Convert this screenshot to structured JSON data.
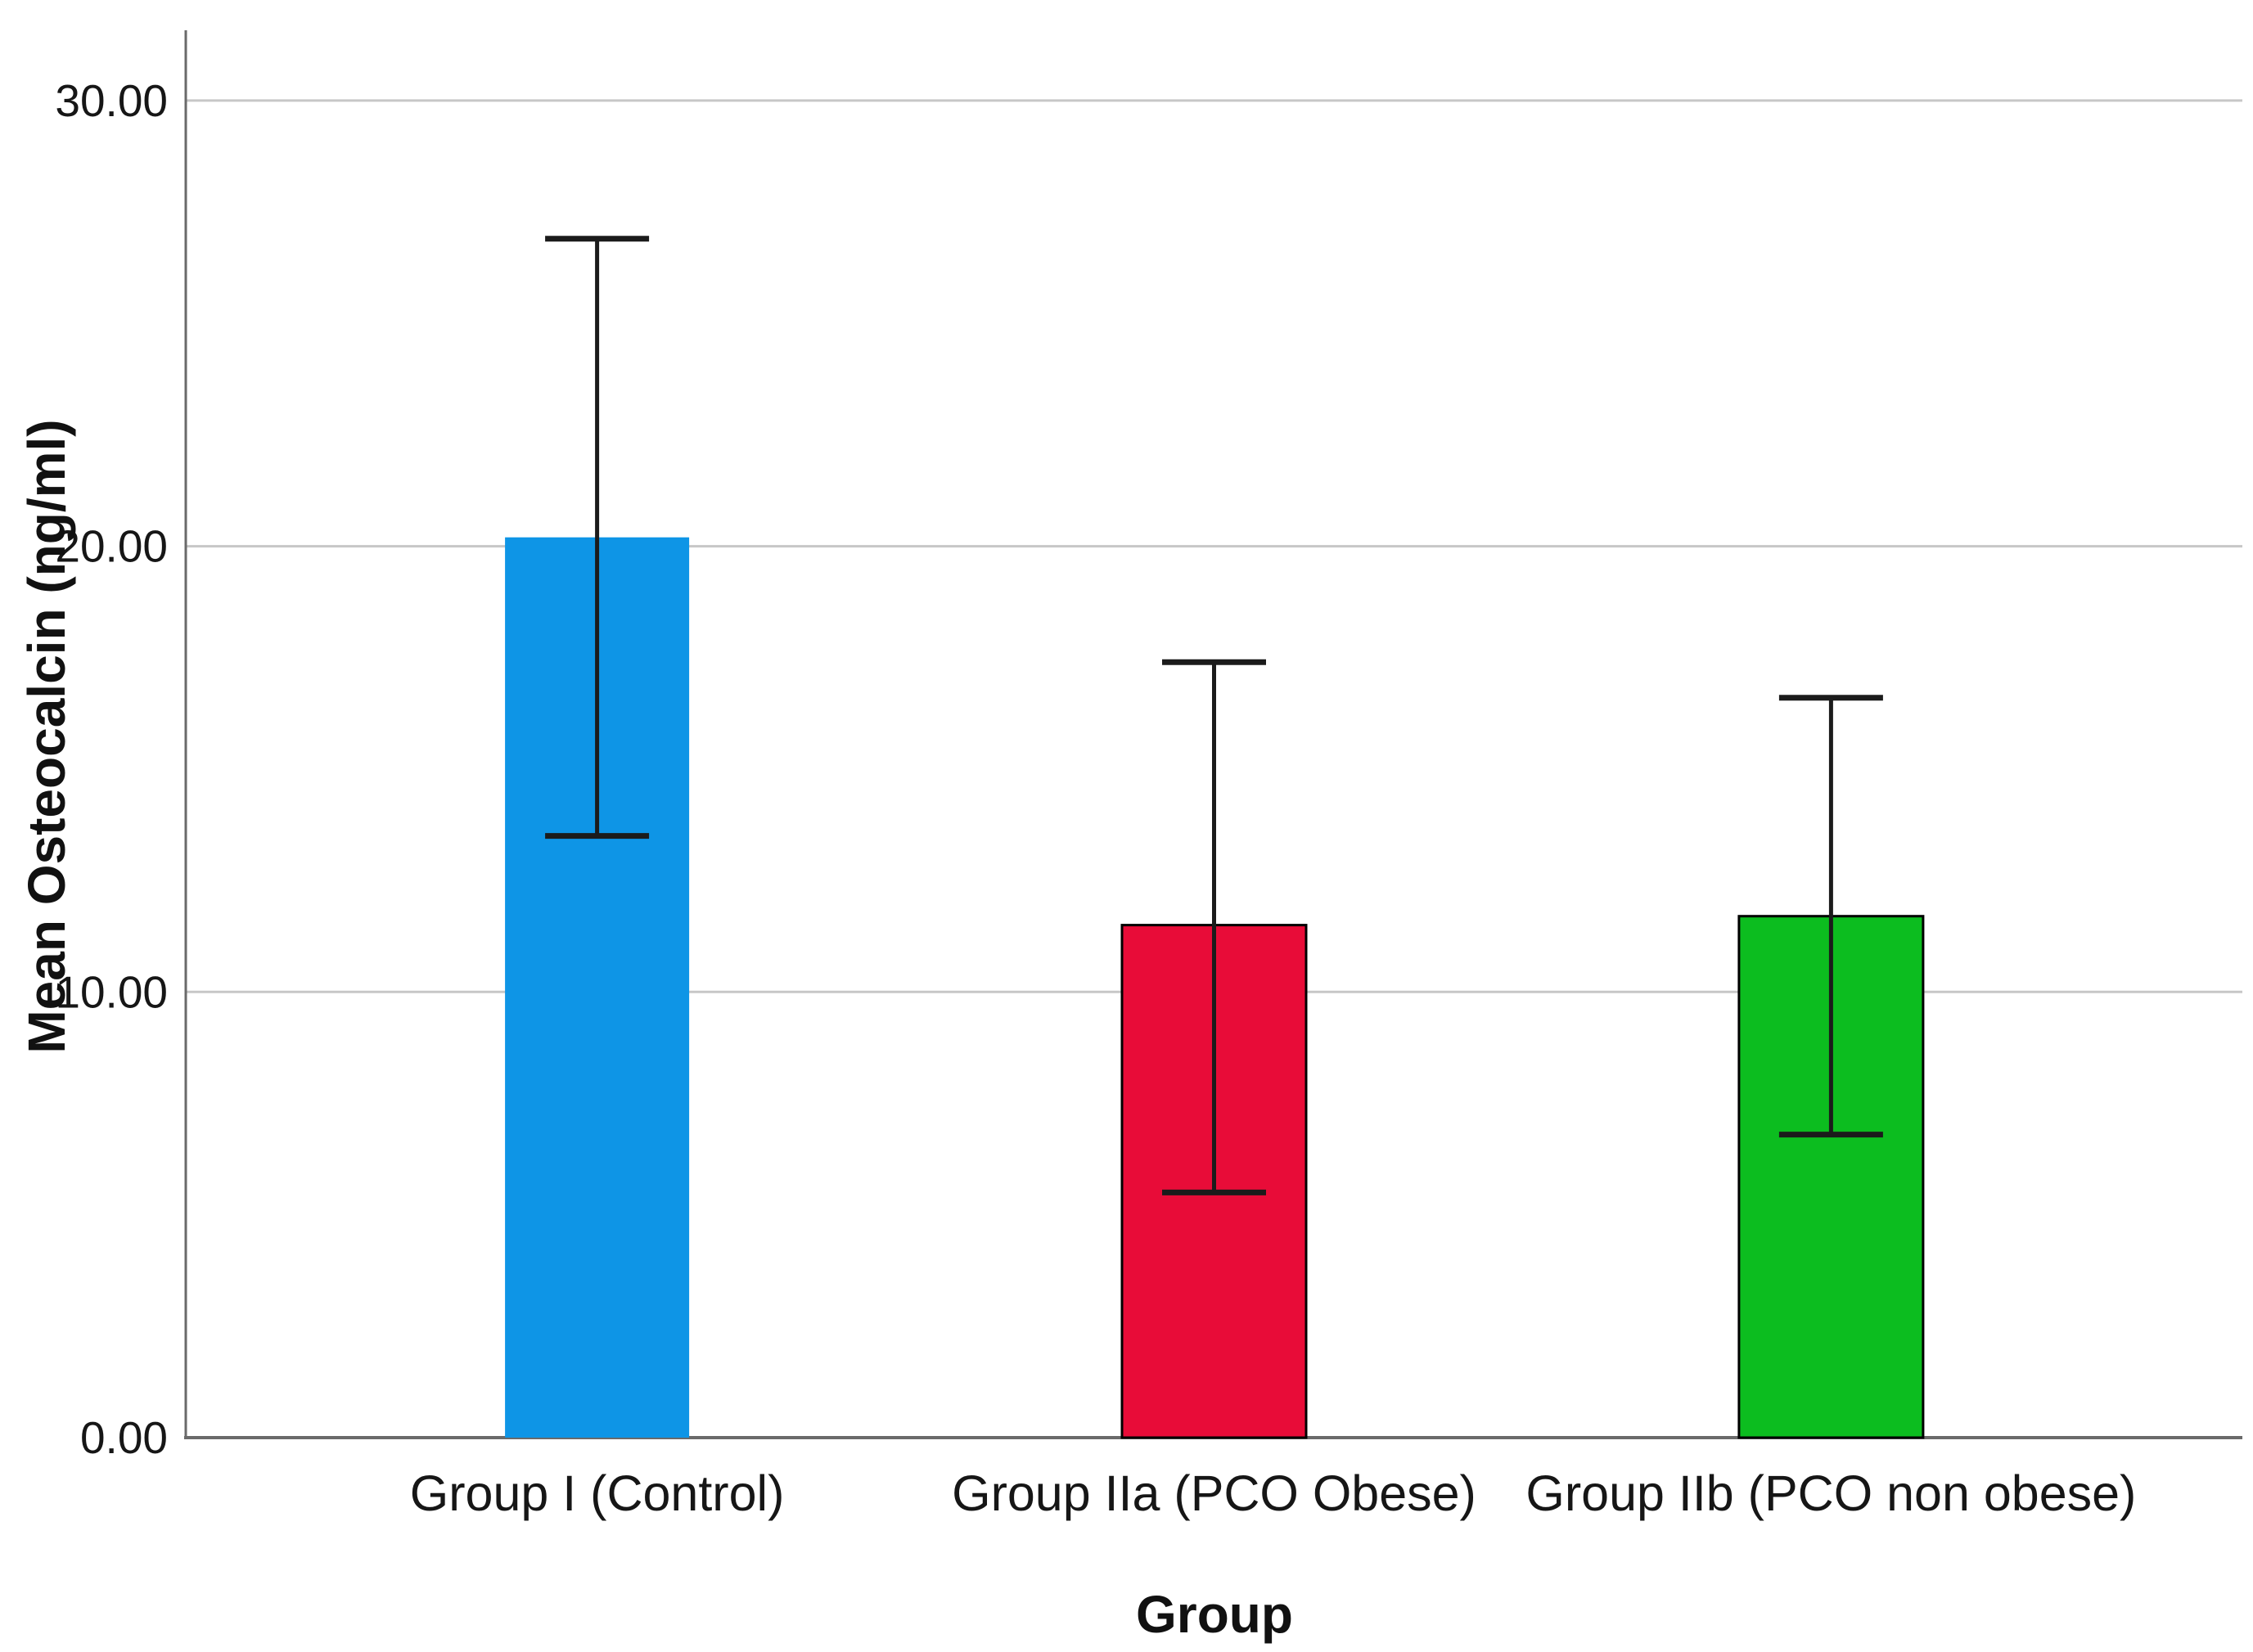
{
  "figure": {
    "background_color": "#ffffff",
    "text_color": "#161616"
  },
  "chart_data": {
    "type": "bar",
    "title": "",
    "xlabel": "Group",
    "ylabel": "Mean Osteocalcin (ng/ml)",
    "categories": [
      "Group I (Control)",
      "Group IIa (PCO Obese)",
      "Group IIb (PCO non obese)"
    ],
    "series": [
      {
        "name": "Mean Osteocalcin (ng/ml)",
        "values": [
          20.2,
          11.5,
          11.7
        ]
      }
    ],
    "error_bars": {
      "low": [
        13.5,
        5.5,
        6.8
      ],
      "high": [
        26.9,
        17.4,
        16.6
      ]
    },
    "bar_colors": [
      "#0e95e6",
      "#e80c38",
      "#0cbd1f"
    ],
    "bar_border_colors": [
      null,
      "#000000",
      "#000000"
    ],
    "ylim": [
      0,
      31.6
    ],
    "yticks": [
      0,
      10,
      20,
      30
    ],
    "ytick_labels": [
      "0.00",
      "10.00",
      "20.00",
      "30.00"
    ],
    "grid": "horizontal",
    "legend": "none",
    "gridline_color": "#c7c7c7",
    "axis_line_color": "#6a6a6a",
    "error_bar_color": "#1b1b1b"
  }
}
